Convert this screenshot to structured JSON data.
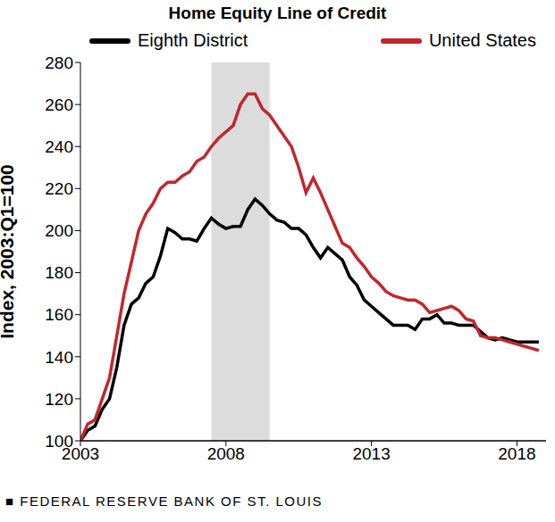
{
  "chart_data": {
    "type": "line",
    "title": "Home Equity Line of Credit",
    "y_label": "Index, 2003:Q1=100",
    "source": "■ FEDERAL RESERVE BANK OF ST. LOUIS",
    "x": [
      2003,
      2003.25,
      2003.5,
      2003.75,
      2004,
      2004.25,
      2004.5,
      2004.75,
      2005,
      2005.25,
      2005.5,
      2005.75,
      2006,
      2006.25,
      2006.5,
      2006.75,
      2007,
      2007.25,
      2007.5,
      2007.75,
      2008,
      2008.25,
      2008.5,
      2008.75,
      2009,
      2009.25,
      2009.5,
      2009.75,
      2010,
      2010.25,
      2010.5,
      2010.75,
      2011,
      2011.25,
      2011.5,
      2011.75,
      2012,
      2012.25,
      2012.5,
      2012.75,
      2013,
      2013.25,
      2013.5,
      2013.75,
      2014,
      2014.25,
      2014.5,
      2014.75,
      2015,
      2015.25,
      2015.5,
      2015.75,
      2016,
      2016.25,
      2016.5,
      2016.75,
      2017,
      2017.25,
      2017.5,
      2017.75,
      2018,
      2018.25,
      2018.5,
      2018.75
    ],
    "xlim": [
      2003,
      2019
    ],
    "xticks": [
      2003,
      2008,
      2013,
      2018
    ],
    "ylim": [
      100,
      280
    ],
    "yticks": [
      100,
      120,
      140,
      160,
      180,
      200,
      220,
      240,
      260,
      280
    ],
    "shaded_range": [
      2007.5,
      2009.5
    ],
    "grid": false,
    "legend": "top",
    "series": [
      {
        "name": "Eighth District",
        "color": "#000000",
        "values": [
          100,
          105,
          107,
          115,
          120,
          135,
          155,
          165,
          168,
          175,
          178,
          188,
          201,
          199,
          196,
          196,
          195,
          201,
          206,
          203,
          201,
          202,
          202,
          210,
          215,
          212,
          208,
          205,
          204,
          201,
          201,
          198,
          192,
          187,
          192,
          189,
          186,
          178,
          174,
          167,
          164,
          161,
          158,
          155,
          155,
          155,
          153,
          158,
          158,
          160,
          156,
          156,
          155,
          155,
          155,
          152,
          149,
          148,
          149,
          148,
          147,
          147,
          147,
          147
        ]
      },
      {
        "name": "United States",
        "color": "#c1272d",
        "values": [
          100,
          108,
          110,
          120,
          130,
          150,
          170,
          185,
          200,
          208,
          213,
          220,
          223,
          223,
          226,
          228,
          233,
          235,
          240,
          244,
          247,
          250,
          260,
          265,
          265,
          258,
          255,
          250,
          245,
          240,
          230,
          218,
          225,
          218,
          210,
          202,
          194,
          192,
          187,
          183,
          178,
          175,
          171,
          169,
          168,
          167,
          167,
          165,
          161,
          162,
          163,
          164,
          162,
          158,
          157,
          150,
          149,
          149,
          148,
          147,
          146,
          145,
          144,
          143
        ]
      }
    ]
  }
}
